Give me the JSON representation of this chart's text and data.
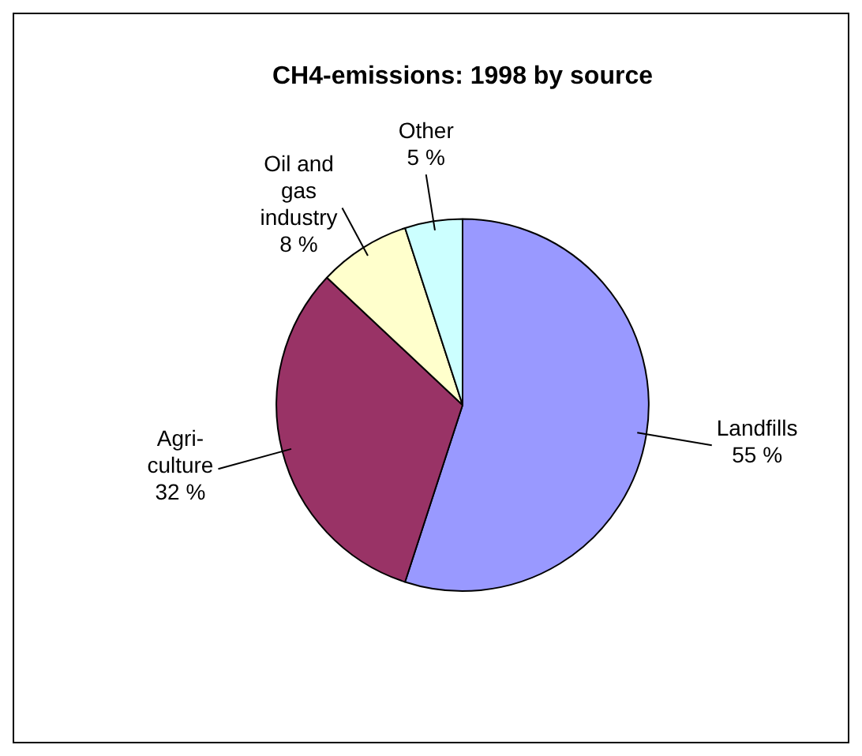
{
  "chart_data": {
    "type": "pie",
    "title": "CH4-emissions: 1998 by source",
    "categories": [
      "Landfills",
      "Agri-\nculture",
      "Oil and\ngas\nindustry",
      "Other"
    ],
    "values": [
      55,
      32,
      8,
      5
    ],
    "colors": [
      "#9999ff",
      "#993366",
      "#ffffcc",
      "#ccffff"
    ],
    "value_labels": [
      "55 %",
      "32 %",
      "8 %",
      "5 %"
    ],
    "legend": false
  }
}
